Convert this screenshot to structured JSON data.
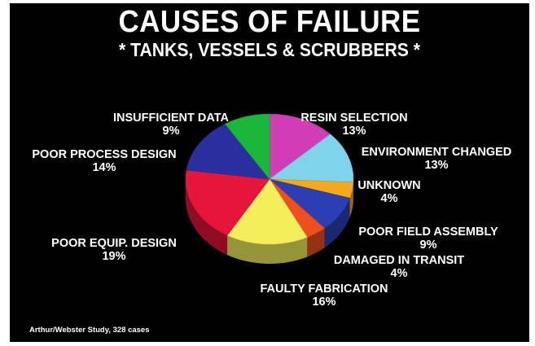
{
  "chart_data": {
    "type": "pie",
    "title": "CAUSES OF FAILURE",
    "subtitle": "* TANKS, VESSELS & SCRUBBERS *",
    "source": "Arthur/Webster Study, 328 cases",
    "slices": [
      {
        "label": "RESIN SELECTION",
        "value": 13,
        "display": "13%",
        "color": "#d23cb4"
      },
      {
        "label": "ENVIRONMENT CHANGED",
        "value": 13,
        "display": "13%",
        "color": "#7fd3ea"
      },
      {
        "label": "UNKNOWN",
        "value": 4,
        "display": "4%",
        "color": "#f4a81c"
      },
      {
        "label": "POOR FIELD ASSEMBLY",
        "value": 9,
        "display": "9%",
        "color": "#2b3fb3"
      },
      {
        "label": "DAMAGED IN TRANSIT",
        "value": 4,
        "display": "4%",
        "color": "#ef4e1e"
      },
      {
        "label": "FAULTY FABRICATION",
        "value": 16,
        "display": "16%",
        "color": "#f2ee5c"
      },
      {
        "label": "POOR EQUIP. DESIGN",
        "value": 19,
        "display": "19%",
        "color": "#e8143c"
      },
      {
        "label": "POOR PROCESS DESIGN",
        "value": 14,
        "display": "14%",
        "color": "#2a2fa0"
      },
      {
        "label": "INSUFFICIENT DATA",
        "value": 9,
        "display": "9%",
        "color": "#19b83a"
      }
    ]
  }
}
